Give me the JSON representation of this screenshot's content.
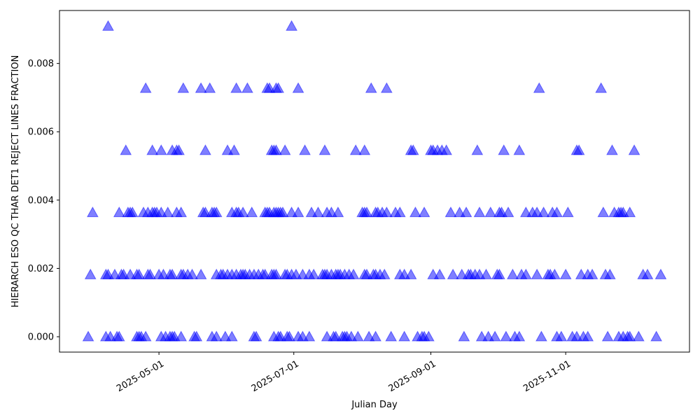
{
  "chart_data": {
    "type": "scatter",
    "title": "",
    "xlabel": "Julian Day",
    "ylabel": "HIERARCH ESO QC THAR DET1 REJECT LINES FRACTION",
    "xlim": [
      "2025-03-17",
      "2025-12-27"
    ],
    "ylim": [
      -0.00045,
      0.00955
    ],
    "x_ticks": [
      "2025-05-01",
      "2025-07-01",
      "2025-09-01",
      "2025-11-01"
    ],
    "y_ticks": [
      "0.000",
      "0.002",
      "0.004",
      "0.006",
      "0.008"
    ],
    "y_tick_values": [
      0,
      0.002,
      0.004,
      0.006,
      0.008
    ],
    "grid": false,
    "legend": "none",
    "marker": "triangle-up",
    "color": "#0000ff",
    "alpha": 0.5,
    "series": [
      {
        "y": 0.0,
        "dates": [
          "2025-03-30",
          "2025-04-07",
          "2025-04-09",
          "2025-04-12",
          "2025-04-13",
          "2025-04-21",
          "2025-04-22",
          "2025-04-23",
          "2025-04-25",
          "2025-05-02",
          "2025-05-04",
          "2025-05-06",
          "2025-05-07",
          "2025-05-08",
          "2025-05-11",
          "2025-05-17",
          "2025-05-18",
          "2025-05-25",
          "2025-05-27",
          "2025-05-31",
          "2025-06-03",
          "2025-06-13",
          "2025-06-14",
          "2025-06-22",
          "2025-06-24",
          "2025-06-25",
          "2025-06-28",
          "2025-06-29",
          "2025-07-03",
          "2025-07-05",
          "2025-07-08",
          "2025-07-16",
          "2025-07-19",
          "2025-07-20",
          "2025-07-23",
          "2025-07-24",
          "2025-07-25",
          "2025-07-27",
          "2025-07-30",
          "2025-08-04",
          "2025-08-07",
          "2025-08-14",
          "2025-08-20",
          "2025-08-26",
          "2025-08-28",
          "2025-08-29",
          "2025-08-31",
          "2025-09-16",
          "2025-09-24",
          "2025-09-27",
          "2025-09-30",
          "2025-10-05",
          "2025-10-09",
          "2025-10-11",
          "2025-10-21",
          "2025-10-28",
          "2025-10-30",
          "2025-11-04",
          "2025-11-06",
          "2025-11-09",
          "2025-11-11",
          "2025-11-20",
          "2025-11-25",
          "2025-11-27",
          "2025-11-29",
          "2025-11-30",
          "2025-12-04",
          "2025-12-12"
        ]
      },
      {
        "y": 0.001818,
        "dates": [
          "2025-03-31",
          "2025-04-07",
          "2025-04-08",
          "2025-04-11",
          "2025-04-14",
          "2025-04-15",
          "2025-04-18",
          "2025-04-21",
          "2025-04-22",
          "2025-04-26",
          "2025-04-27",
          "2025-05-01",
          "2025-05-03",
          "2025-05-06",
          "2025-05-07",
          "2025-05-11",
          "2025-05-12",
          "2025-05-14",
          "2025-05-16",
          "2025-05-20",
          "2025-05-27",
          "2025-05-29",
          "2025-05-30",
          "2025-06-01",
          "2025-06-03",
          "2025-06-05",
          "2025-06-07",
          "2025-06-08",
          "2025-06-09",
          "2025-06-11",
          "2025-06-13",
          "2025-06-15",
          "2025-06-17",
          "2025-06-18",
          "2025-06-21",
          "2025-06-22",
          "2025-06-23",
          "2025-06-27",
          "2025-06-28",
          "2025-06-30",
          "2025-07-02",
          "2025-07-05",
          "2025-07-08",
          "2025-07-10",
          "2025-07-14",
          "2025-07-15",
          "2025-07-16",
          "2025-07-18",
          "2025-07-20",
          "2025-07-21",
          "2025-07-22",
          "2025-07-24",
          "2025-07-26",
          "2025-07-28",
          "2025-08-02",
          "2025-08-03",
          "2025-08-06",
          "2025-08-07",
          "2025-08-09",
          "2025-08-11",
          "2025-08-18",
          "2025-08-20",
          "2025-08-23",
          "2025-09-02",
          "2025-09-05",
          "2025-09-11",
          "2025-09-15",
          "2025-09-18",
          "2025-09-19",
          "2025-09-21",
          "2025-09-23",
          "2025-09-26",
          "2025-10-01",
          "2025-10-02",
          "2025-10-08",
          "2025-10-12",
          "2025-10-14",
          "2025-10-19",
          "2025-10-24",
          "2025-10-25",
          "2025-10-27",
          "2025-11-01",
          "2025-11-08",
          "2025-11-11",
          "2025-11-13",
          "2025-11-19",
          "2025-11-21",
          "2025-12-06",
          "2025-12-08",
          "2025-12-14"
        ]
      },
      {
        "y": 0.003636,
        "dates": [
          "2025-04-01",
          "2025-04-13",
          "2025-04-17",
          "2025-04-18",
          "2025-04-19",
          "2025-04-24",
          "2025-04-26",
          "2025-04-28",
          "2025-04-29",
          "2025-04-30",
          "2025-05-02",
          "2025-05-05",
          "2025-05-09",
          "2025-05-11",
          "2025-05-21",
          "2025-05-22",
          "2025-05-25",
          "2025-05-26",
          "2025-05-27",
          "2025-06-03",
          "2025-06-05",
          "2025-06-06",
          "2025-06-08",
          "2025-06-12",
          "2025-06-18",
          "2025-06-19",
          "2025-06-20",
          "2025-06-22",
          "2025-06-23",
          "2025-06-24",
          "2025-06-25",
          "2025-06-26",
          "2025-06-30",
          "2025-07-03",
          "2025-07-09",
          "2025-07-12",
          "2025-07-16",
          "2025-07-18",
          "2025-07-21",
          "2025-08-01",
          "2025-08-02",
          "2025-08-03",
          "2025-08-07",
          "2025-08-08",
          "2025-08-10",
          "2025-08-12",
          "2025-08-16",
          "2025-08-18",
          "2025-08-25",
          "2025-08-29",
          "2025-09-10",
          "2025-09-14",
          "2025-09-17",
          "2025-09-23",
          "2025-09-28",
          "2025-10-02",
          "2025-10-03",
          "2025-10-06",
          "2025-10-14",
          "2025-10-17",
          "2025-10-19",
          "2025-10-22",
          "2025-10-26",
          "2025-10-28",
          "2025-11-02",
          "2025-11-18",
          "2025-11-23",
          "2025-11-25",
          "2025-11-26",
          "2025-11-27",
          "2025-11-30"
        ]
      },
      {
        "y": 0.005455,
        "dates": [
          "2025-04-16",
          "2025-04-28",
          "2025-05-02",
          "2025-05-07",
          "2025-05-09",
          "2025-05-10",
          "2025-05-22",
          "2025-06-01",
          "2025-06-04",
          "2025-06-21",
          "2025-06-22",
          "2025-06-23",
          "2025-06-27",
          "2025-07-06",
          "2025-07-15",
          "2025-07-29",
          "2025-08-02",
          "2025-08-23",
          "2025-08-24",
          "2025-09-01",
          "2025-09-02",
          "2025-09-04",
          "2025-09-06",
          "2025-09-08",
          "2025-09-22",
          "2025-10-04",
          "2025-10-11",
          "2025-11-06",
          "2025-11-07",
          "2025-11-22",
          "2025-12-02"
        ]
      },
      {
        "y": 0.007273,
        "dates": [
          "2025-04-25",
          "2025-05-12",
          "2025-05-20",
          "2025-05-24",
          "2025-06-05",
          "2025-06-10",
          "2025-06-19",
          "2025-06-20",
          "2025-06-23",
          "2025-06-24",
          "2025-07-03",
          "2025-08-05",
          "2025-08-12",
          "2025-10-20",
          "2025-11-17"
        ]
      },
      {
        "y": 0.009091,
        "dates": [
          "2025-04-08",
          "2025-06-30"
        ]
      }
    ]
  }
}
